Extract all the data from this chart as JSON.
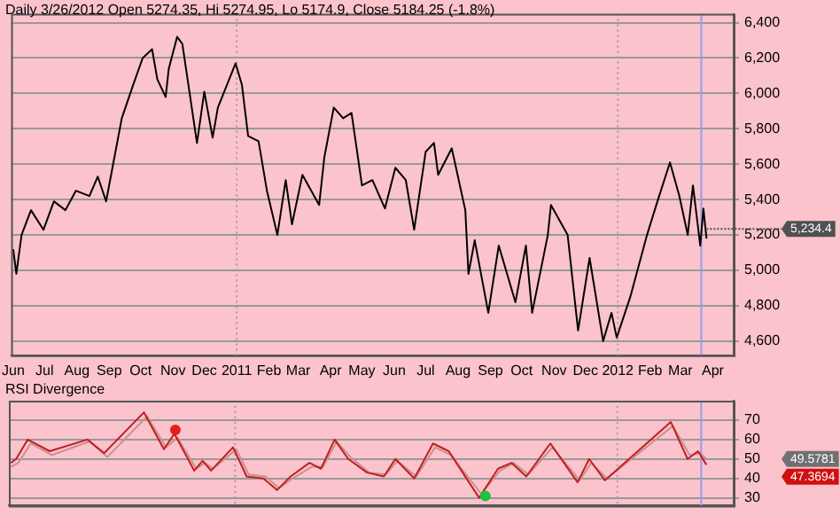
{
  "chart_data": [
    {
      "type": "line",
      "title": "Daily 3/26/2012 Open 5274.35, Hi 5274.95, Lo 5174.9, Close 5184.25 (-1.8%)",
      "series": [
        {
          "color": "#000000",
          "x": [
            "2010-06-01",
            "2010-06-04",
            "2010-06-09",
            "2010-06-18",
            "2010-06-30",
            "2010-07-10",
            "2010-07-21",
            "2010-07-31",
            "2010-08-13",
            "2010-08-21",
            "2010-08-29",
            "2010-09-05",
            "2010-09-13",
            "2010-09-24",
            "2010-10-03",
            "2010-10-12",
            "2010-10-17",
            "2010-10-25",
            "2010-10-28",
            "2010-11-05",
            "2010-11-10",
            "2010-11-15",
            "2010-11-24",
            "2010-12-01",
            "2010-12-09",
            "2010-12-14",
            "2010-12-31",
            "2011-01-06",
            "2011-01-12",
            "2011-01-22",
            "2011-01-30",
            "2011-02-09",
            "2011-02-17",
            "2011-02-23",
            "2011-03-05",
            "2011-03-21",
            "2011-03-26",
            "2011-04-04",
            "2011-04-13",
            "2011-04-21",
            "2011-05-01",
            "2011-05-11",
            "2011-05-23",
            "2011-06-02",
            "2011-06-12",
            "2011-06-20",
            "2011-07-01",
            "2011-07-09",
            "2011-07-13",
            "2011-07-26",
            "2011-08-08",
            "2011-08-11",
            "2011-08-17",
            "2011-08-30",
            "2011-09-09",
            "2011-09-25",
            "2011-10-05",
            "2011-10-11",
            "2011-10-26",
            "2011-10-29",
            "2011-11-14",
            "2011-11-24",
            "2011-12-05",
            "2011-12-18",
            "2011-12-26",
            "2011-12-31",
            "2012-01-13",
            "2012-01-29",
            "2012-02-08",
            "2012-02-20",
            "2012-02-29",
            "2012-03-08",
            "2012-03-13",
            "2012-03-20",
            "2012-03-23",
            "2012-03-26"
          ],
          "values": [
            5120,
            4980,
            5200,
            5340,
            5230,
            5390,
            5340,
            5450,
            5420,
            5530,
            5390,
            5610,
            5860,
            6050,
            6200,
            6250,
            6080,
            5980,
            6140,
            6320,
            6280,
            6080,
            5720,
            6010,
            5750,
            5920,
            6170,
            6050,
            5760,
            5730,
            5450,
            5200,
            5510,
            5260,
            5540,
            5370,
            5640,
            5920,
            5860,
            5890,
            5480,
            5510,
            5350,
            5580,
            5510,
            5230,
            5670,
            5720,
            5540,
            5690,
            5340,
            4980,
            5170,
            4760,
            5140,
            4820,
            5140,
            4760,
            5200,
            5370,
            5200,
            4660,
            5070,
            4600,
            4760,
            4620,
            4850,
            5200,
            5390,
            5610,
            5420,
            5200,
            5480,
            5140,
            5350,
            5180
          ]
        }
      ],
      "xlim": [
        "2010-05-30",
        "2012-04-21"
      ],
      "xticks": [
        {
          "value": "2010-06-01",
          "label": "Jun"
        },
        {
          "value": "2010-07-01",
          "label": "Jul"
        },
        {
          "value": "2010-08-01",
          "label": "Aug"
        },
        {
          "value": "2010-09-01",
          "label": "Sep"
        },
        {
          "value": "2010-10-01",
          "label": "Oct"
        },
        {
          "value": "2010-11-01",
          "label": "Nov"
        },
        {
          "value": "2010-12-01",
          "label": "Dec"
        },
        {
          "value": "2011-01-01",
          "label": "2011"
        },
        {
          "value": "2011-02-01",
          "label": "Feb"
        },
        {
          "value": "2011-03-01",
          "label": "Mar"
        },
        {
          "value": "2011-04-01",
          "label": "Apr"
        },
        {
          "value": "2011-05-01",
          "label": "May"
        },
        {
          "value": "2011-06-01",
          "label": "Jun"
        },
        {
          "value": "2011-07-01",
          "label": "Jul"
        },
        {
          "value": "2011-08-01",
          "label": "Aug"
        },
        {
          "value": "2011-09-01",
          "label": "Sep"
        },
        {
          "value": "2011-10-01",
          "label": "Oct"
        },
        {
          "value": "2011-11-01",
          "label": "Nov"
        },
        {
          "value": "2011-12-01",
          "label": "Dec"
        },
        {
          "value": "2012-01-01",
          "label": "2012"
        },
        {
          "value": "2012-02-01",
          "label": "Feb"
        },
        {
          "value": "2012-03-01",
          "label": "Mar"
        },
        {
          "value": "2012-04-01",
          "label": "Apr"
        }
      ],
      "ylim": [
        4520,
        6450
      ],
      "yticks": [
        {
          "value": 4600,
          "label": "4,600"
        },
        {
          "value": 4800,
          "label": "4,800"
        },
        {
          "value": 5000,
          "label": "5,000"
        },
        {
          "value": 5200,
          "label": "5,200"
        },
        {
          "value": 5400,
          "label": "5,400"
        },
        {
          "value": 5600,
          "label": "5,600"
        },
        {
          "value": 5800,
          "label": "5,800"
        },
        {
          "value": 6000,
          "label": "6,000"
        },
        {
          "value": 6200,
          "label": "6,200"
        },
        {
          "value": 6400,
          "label": "6,400"
        }
      ],
      "grid": "y",
      "legend": false,
      "marker": "none",
      "ref_lines": [
        {
          "axis": "x",
          "value": "2011-01-01",
          "color": "#a0a0a0",
          "line_style": "dotted"
        },
        {
          "axis": "x",
          "value": "2012-01-01",
          "color": "#a0a0a0",
          "line_style": "dotted"
        },
        {
          "axis": "x",
          "value": "2012-03-21",
          "color": "#9999ee",
          "line_style": "solid"
        }
      ],
      "annotations": [
        {
          "text": "5,234.4",
          "x": "2012-03-26",
          "y": 5234.4
        }
      ]
    },
    {
      "type": "line",
      "title": "RSI Divergence",
      "series": [
        {
          "color": "#c02020",
          "x": [
            "2010-06-01",
            "2010-06-06",
            "2010-06-17",
            "2010-07-08",
            "2010-08-13",
            "2010-08-29",
            "2010-10-06",
            "2010-10-25",
            "2010-11-04",
            "2010-11-23",
            "2010-12-01",
            "2010-12-09",
            "2010-12-30",
            "2011-01-12",
            "2011-01-28",
            "2011-02-10",
            "2011-02-23",
            "2011-03-13",
            "2011-03-24",
            "2011-04-06",
            "2011-04-19",
            "2011-05-07",
            "2011-05-23",
            "2011-06-03",
            "2011-06-21",
            "2011-07-09",
            "2011-07-24",
            "2011-08-22",
            "2011-09-09",
            "2011-09-22",
            "2011-10-06",
            "2011-10-29",
            "2011-11-24",
            "2011-12-05",
            "2011-12-20",
            "2012-02-21",
            "2012-03-08",
            "2012-03-18",
            "2012-03-26"
          ],
          "values": [
            48,
            50,
            60,
            54,
            60,
            53,
            74,
            55,
            63,
            44,
            49,
            44,
            56,
            41,
            40,
            34,
            41,
            48,
            45,
            60,
            50,
            43,
            41,
            50,
            40,
            58,
            54,
            30,
            45,
            48,
            41,
            58,
            38,
            50,
            39,
            69,
            50,
            54,
            47
          ]
        },
        {
          "color": "#c89090",
          "x": [
            "2010-06-01",
            "2010-06-08",
            "2010-06-20",
            "2010-07-10",
            "2010-08-15",
            "2010-09-01",
            "2010-10-09",
            "2010-10-27",
            "2010-11-07",
            "2010-11-25",
            "2010-12-03",
            "2010-12-11",
            "2011-01-02",
            "2011-01-14",
            "2011-01-30",
            "2011-02-12",
            "2011-02-25",
            "2011-03-15",
            "2011-03-26",
            "2011-04-08",
            "2011-04-21",
            "2011-05-09",
            "2011-05-25",
            "2011-06-05",
            "2011-06-23",
            "2011-07-11",
            "2011-07-26",
            "2011-08-24",
            "2011-09-11",
            "2011-09-24",
            "2011-10-08",
            "2011-10-31",
            "2011-11-26",
            "2011-12-07",
            "2011-12-22",
            "2012-02-23",
            "2012-03-10",
            "2012-03-20",
            "2012-03-26"
          ],
          "values": [
            46,
            48,
            58,
            52,
            59,
            51,
            72,
            56,
            61,
            45,
            48,
            45,
            55,
            42,
            41,
            35,
            40,
            46,
            46,
            59,
            51,
            43,
            42,
            49,
            41,
            56,
            52,
            32,
            44,
            48,
            42,
            56,
            39,
            48,
            40,
            67,
            52,
            53,
            50
          ]
        },
        {
          "type": "scatter",
          "marker": "circle",
          "colors": [
            "#e02020",
            "#20c040"
          ],
          "x": [
            "2010-11-05",
            "2011-08-28"
          ],
          "values": [
            65,
            31
          ]
        }
      ],
      "xlim": [
        "2010-05-30",
        "2012-04-21"
      ],
      "ylim": [
        26,
        80
      ],
      "yticks": [
        30,
        40,
        50,
        60,
        70
      ],
      "tick_labels": "y",
      "grid": "y",
      "legend": false,
      "ref_lines": [
        {
          "axis": "x",
          "value": "2011-01-01",
          "color": "#a0a0a0",
          "line_style": "dotted"
        },
        {
          "axis": "x",
          "value": "2012-01-01",
          "color": "#a0a0a0",
          "line_style": "dotted"
        },
        {
          "axis": "x",
          "value": "2012-03-21",
          "color": "#9999ee",
          "line_style": "solid"
        }
      ],
      "annotations": [
        "49.5781",
        "47.3694"
      ]
    }
  ]
}
